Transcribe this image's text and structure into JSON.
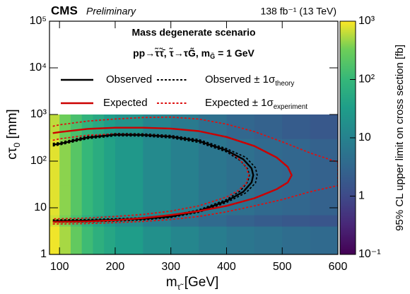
{
  "chart_data": {
    "type": "heatmap",
    "experiment": "CMS",
    "status": "Preliminary",
    "lumi": "138 fb⁻¹ (13 TeV)",
    "title": "Mass degenerate scenario",
    "subtitle": {
      "main": "pp→τ̃τ̃̄,  τ̃→τG̃,  m",
      "sub": "G̃",
      "end": " = 1 GeV"
    },
    "xlabel": {
      "main": "m",
      "sub": "τ̃",
      "end": " [GeV]"
    },
    "ylabel": {
      "main": "cτ",
      "sub": "0",
      "end": " [mm]"
    },
    "xlim": [
      82,
      600
    ],
    "xticks": [
      100,
      200,
      300,
      400,
      500,
      600
    ],
    "ylim": [
      1,
      100000
    ],
    "ylog": true,
    "yticks": [
      1,
      10,
      {
        "value": 100,
        "label": "10²"
      },
      {
        "value": 1000,
        "label": "10³"
      },
      {
        "value": 10000,
        "label": "10⁴"
      },
      {
        "value": 100000,
        "label": "10⁵"
      }
    ],
    "x_edges": [
      82,
      100,
      120,
      140,
      160,
      180,
      200,
      250,
      300,
      350,
      400,
      450,
      500,
      550,
      600
    ],
    "y_edges": [
      1,
      4,
      7,
      30,
      300,
      1000
    ],
    "values": [
      [
        900,
        500,
        250,
        120,
        70,
        45,
        30,
        18,
        12,
        8,
        6,
        5,
        4,
        3.5
      ],
      [
        700,
        350,
        150,
        70,
        40,
        25,
        15,
        8,
        5,
        3.5,
        2.5,
        2,
        1.7,
        1.5
      ],
      [
        800,
        400,
        200,
        100,
        60,
        38,
        25,
        14,
        9,
        6,
        4.5,
        3.5,
        3,
        2.5
      ],
      [
        800,
        400,
        200,
        100,
        60,
        38,
        25,
        14,
        9,
        6,
        4.5,
        3.5,
        3,
        2.5
      ],
      [
        600,
        300,
        150,
        80,
        50,
        30,
        20,
        11,
        7,
        4.5,
        3,
        2.5,
        2,
        1.7
      ]
    ],
    "colorbar": {
      "label": "95% CL upper limit on cross section [fb]",
      "lim": [
        0.1,
        1000
      ],
      "log": true,
      "ticks": [
        {
          "value": 0.1,
          "label": "10⁻¹"
        },
        1,
        10,
        {
          "value": 100,
          "label": "10²"
        },
        {
          "value": 1000,
          "label": "10³"
        }
      ]
    },
    "series": [
      {
        "name": "Observed",
        "color": "#000000",
        "x": [
          88,
          100,
          150,
          200,
          250,
          300,
          350,
          400,
          430,
          445,
          448,
          445,
          430,
          400,
          350,
          300,
          250,
          200,
          150,
          100,
          88
        ],
        "values": [
          225,
          235,
          320,
          370,
          365,
          335,
          270,
          170,
          110,
          70,
          50,
          35,
          22,
          14,
          8.5,
          6.5,
          5.8,
          5.5,
          5.3,
          5.2,
          5.2
        ]
      },
      {
        "name": "Expected",
        "color": "#cc0000",
        "x": [
          88,
          100,
          150,
          200,
          250,
          300,
          350,
          400,
          450,
          490,
          510,
          517,
          510,
          490,
          450,
          400,
          350,
          300,
          250,
          200,
          150,
          100,
          88
        ],
        "values": [
          400,
          420,
          490,
          520,
          520,
          500,
          440,
          330,
          210,
          120,
          75,
          50,
          35,
          25,
          16,
          11,
          8.5,
          7,
          6,
          5.4,
          5.1,
          5,
          5
        ]
      }
    ],
    "bands": [
      {
        "name": "Observed ± 1σ",
        "sub": "theory",
        "color": "#000000",
        "curves": [
          {
            "x": [
              88,
              100,
              150,
              200,
              250,
              300,
              350,
              400,
              435,
              452,
              455,
              452,
              435,
              400,
              350,
              300,
              250,
              200,
              150,
              100,
              88
            ],
            "values": [
              240,
              250,
              340,
              390,
              385,
              355,
              290,
              185,
              120,
              72,
              50,
              34,
              21,
              13,
              8,
              6.2,
              5.5,
              5.2,
              5.0,
              4.9,
              4.9
            ]
          },
          {
            "x": [
              88,
              100,
              150,
              200,
              250,
              300,
              350,
              400,
              425,
              438,
              441,
              438,
              425,
              400,
              350,
              300,
              250,
              200,
              150,
              100,
              88
            ],
            "values": [
              212,
              222,
              302,
              350,
              345,
              315,
              252,
              158,
              102,
              68,
              50,
              36,
              23,
              15,
              9,
              6.8,
              6.1,
              5.8,
              5.6,
              5.5,
              5.5
            ]
          }
        ]
      },
      {
        "name": "Expected ± 1σ",
        "sub": "experiment",
        "color": "#dd1111",
        "curves": [
          {
            "x": [
              88,
              100,
              150,
              200,
              250,
              300,
              350,
              400,
              450,
              500,
              550,
              600,
              600,
              550,
              500,
              450,
              400,
              350,
              300,
              250,
              200,
              150,
              100,
              88
            ],
            "values": [
              560,
              600,
              720,
              800,
              860,
              880,
              800,
              620,
              430,
              260,
              150,
              95,
              30,
              22,
              15,
              11,
              8.2,
              6.5,
              5.6,
              5.1,
              4.8,
              4.6,
              4.5,
              4.5
            ]
          },
          {
            "x": [
              88,
              100,
              150,
              200,
              250,
              300,
              350,
              400,
              420,
              435,
              440,
              435,
              420,
              400,
              350,
              300,
              250,
              200,
              150,
              100,
              88
            ],
            "values": [
              280,
              300,
              360,
              380,
              370,
              340,
              270,
              170,
              120,
              75,
              50,
              33,
              23,
              17,
              11,
              8.5,
              7.2,
              6.5,
              6.0,
              5.8,
              5.8
            ]
          }
        ]
      }
    ]
  }
}
